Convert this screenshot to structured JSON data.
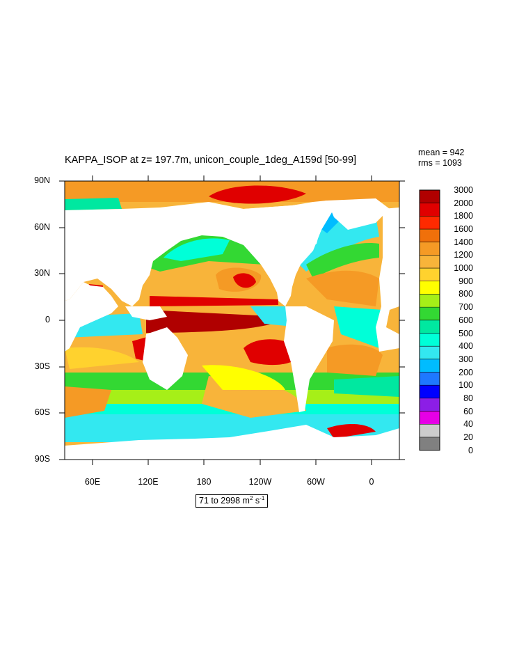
{
  "title": "KAPPA_ISOP at z= 197.7m, unicon_couple_1deg_A159d [50-99]",
  "stats": {
    "mean": "mean = 942",
    "rms": "rms = 1093"
  },
  "lat_labels": [
    "90N",
    "60N",
    "30N",
    "0",
    "30S",
    "60S",
    "90S"
  ],
  "lon_labels": [
    "60E",
    "120E",
    "180",
    "120W",
    "60W",
    "0"
  ],
  "colorbar": {
    "levels": [
      "3000",
      "2000",
      "1800",
      "1600",
      "1400",
      "1200",
      "1000",
      "900",
      "800",
      "700",
      "600",
      "500",
      "400",
      "300",
      "200",
      "100",
      "80",
      "60",
      "40",
      "20",
      "0"
    ],
    "colors": [
      "#b00000",
      "#e00000",
      "#ff2a00",
      "#f0700a",
      "#f59a25",
      "#f8b43a",
      "#ffd22e",
      "#ffff00",
      "#a6ef18",
      "#33d833",
      "#00e8a0",
      "#00ffd8",
      "#33e8f0",
      "#00bcff",
      "#1e78ff",
      "#0000ff",
      "#8c1ee6",
      "#e600e6",
      "#cccccc",
      "#808080"
    ]
  },
  "range": {
    "text": "71 to 2998 m",
    "exp1": "2",
    "unit": " s",
    "exp2": "-1"
  },
  "colors": {
    "land": "#ffffff",
    "contour": "#000000"
  }
}
